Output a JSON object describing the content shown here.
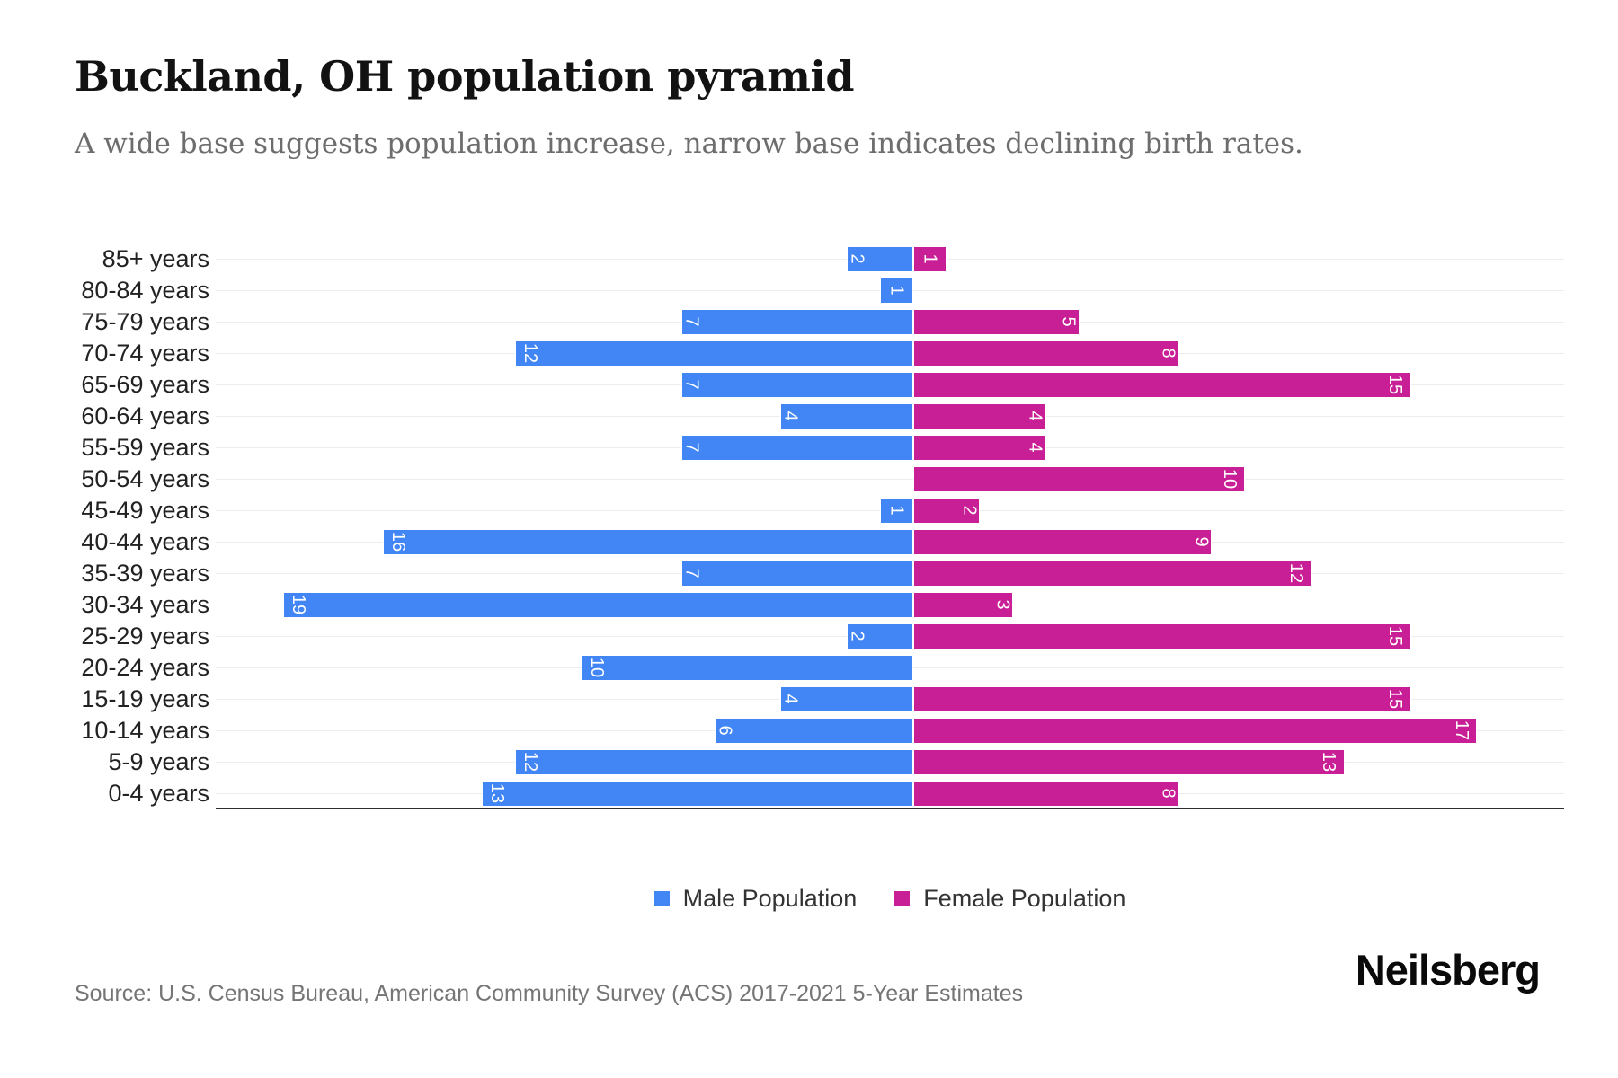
{
  "header": {
    "title": "Buckland, OH population pyramid",
    "subtitle": "A wide base suggests population increase, narrow base indicates declining birth rates."
  },
  "chart_data": {
    "type": "bar",
    "subtype": "population-pyramid-diverging-horizontal",
    "title": "Buckland, OH population pyramid",
    "categories": [
      "85+ years",
      "80-84 years",
      "75-79 years",
      "70-74 years",
      "65-69 years",
      "60-64 years",
      "55-59 years",
      "50-54 years",
      "45-49 years",
      "40-44 years",
      "35-39 years",
      "30-34 years",
      "25-29 years",
      "20-24 years",
      "15-19 years",
      "10-14 years",
      "5-9 years",
      "0-4 years"
    ],
    "series": [
      {
        "name": "Male Population",
        "side": "left",
        "color": "#4285F4",
        "values": [
          2,
          1,
          7,
          12,
          7,
          4,
          7,
          0,
          1,
          16,
          7,
          19,
          2,
          10,
          4,
          6,
          12,
          13
        ]
      },
      {
        "name": "Female Population",
        "side": "right",
        "color": "#C81E96",
        "values": [
          1,
          0,
          5,
          8,
          15,
          4,
          4,
          10,
          2,
          9,
          12,
          3,
          15,
          0,
          15,
          17,
          13,
          8
        ]
      }
    ],
    "value_label_style": "white, rotated 90deg, at outer end of bar, hidden when value is 0",
    "axis": {
      "left_max": 21,
      "right_max": 20,
      "category_gridlines": true,
      "gridline_color": "#ededed",
      "baseline_color": "#2e2e2e"
    },
    "legend_position": "bottom-center"
  },
  "legend": {
    "items": [
      {
        "label": "Male Population",
        "color": "#4285F4"
      },
      {
        "label": "Female Population",
        "color": "#C81E96"
      }
    ]
  },
  "footer": {
    "source_text": "Source: U.S. Census Bureau, American Community Survey (ACS) 2017-2021 5-Year Estimates",
    "brand": "Neilsberg"
  }
}
